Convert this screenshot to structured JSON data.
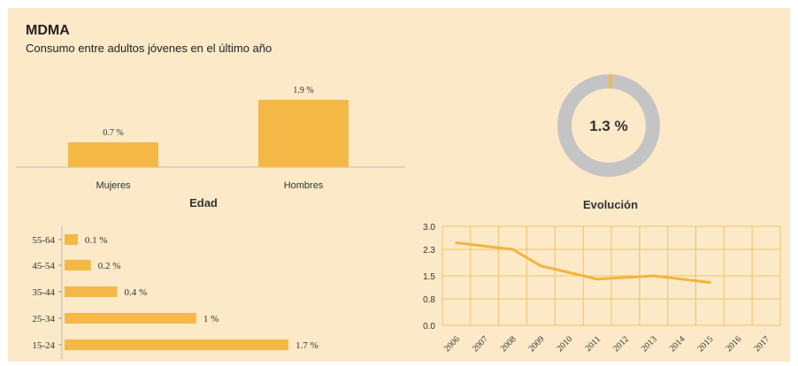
{
  "header": {
    "title": "MDMA",
    "subtitle": "Consumo entre adultos jóvenes en el último año"
  },
  "colors": {
    "bar": "#f4b846",
    "panel_bg": "#fbe9c8",
    "donut_track": "#c4c4c4",
    "grid": "#f0c26a",
    "line": "#f2b43e"
  },
  "chart_data": [
    {
      "type": "bar",
      "categories": [
        "Mujeres",
        "Hombres"
      ],
      "values": [
        0.7,
        1.9
      ],
      "data_labels": [
        "0.7 %",
        "1.9 %"
      ],
      "ylim": [
        0,
        2.3
      ],
      "grid": false
    },
    {
      "type": "pie",
      "values": [
        1.3,
        98.7
      ],
      "center_label": "1.3 %"
    },
    {
      "type": "bar",
      "orientation": "horizontal",
      "title": "Edad",
      "categories": [
        "55-64",
        "45-54",
        "35-44",
        "25-34",
        "15-24"
      ],
      "values": [
        0.1,
        0.2,
        0.4,
        1.0,
        1.7
      ],
      "data_labels": [
        "0.1 %",
        "0.2 %",
        "0.4 %",
        "1 %",
        "1.7 %"
      ],
      "xlim": [
        0,
        1.8
      ],
      "grid": false
    },
    {
      "type": "line",
      "title": "Evolución",
      "x": [
        "2006",
        "2007",
        "2008",
        "2009",
        "2010",
        "2011",
        "2012",
        "2013",
        "2014",
        "2015",
        "2016",
        "2017"
      ],
      "y": [
        2.5,
        2.4,
        2.3,
        1.8,
        1.6,
        1.4,
        1.45,
        1.5,
        1.4,
        1.3,
        null,
        null
      ],
      "yticks": [
        "0.0",
        "0.8",
        "1.5",
        "2.3",
        "3.0"
      ],
      "ylim": [
        0,
        3.0
      ],
      "grid": true
    }
  ]
}
